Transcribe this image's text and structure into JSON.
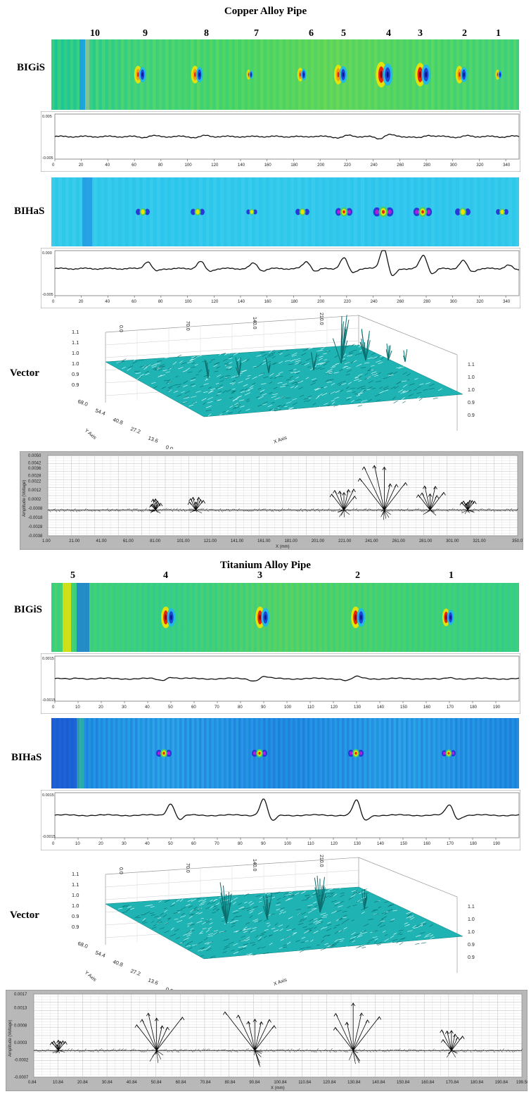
{
  "sections": [
    {
      "title": "Copper Alloy Pipe",
      "defect_numbers": [
        "10",
        "9",
        "8",
        "7",
        "6",
        "5",
        "4",
        "3",
        "2",
        "1"
      ],
      "row_labels": {
        "bigis": "BIGiS",
        "bihas": "BIHaS",
        "vector": "Vector"
      },
      "signal1": {
        "ytop": "0.005",
        "ybot": "-0.005",
        "xticks": [
          "0",
          "20",
          "40",
          "60",
          "80",
          "100",
          "120",
          "140",
          "160",
          "180",
          "200",
          "220",
          "240",
          "260",
          "280",
          "300",
          "320",
          "340"
        ]
      },
      "signal2": {
        "ytop": "0.000",
        "ybot": "-0.005",
        "xticks": [
          "0",
          "20",
          "40",
          "60",
          "80",
          "100",
          "120",
          "140",
          "160",
          "180",
          "200",
          "220",
          "240",
          "260",
          "280",
          "300",
          "320",
          "340"
        ]
      },
      "surface": {
        "zticks": [
          "1.1",
          "1.1",
          "1.0",
          "1.0",
          "0.9",
          "0.9"
        ],
        "yticks": [
          "68.0",
          "54.4",
          "40.8",
          "27.2",
          "13.6",
          "0.0"
        ],
        "y_axis_label": "Y Axis",
        "x_axis_label": "X Axis",
        "top_ticks": [
          "0.0",
          "70.0",
          "140.0",
          "210.0"
        ],
        "right_ticks": [
          "1.1",
          "1.0",
          "1.0",
          "0.9",
          "0.9"
        ]
      },
      "vector_plot": {
        "ylabel": "Amplitude (Voltage)",
        "xlabel": "X (mm)",
        "yticks": [
          "0.0050",
          "0.0042",
          "0.0036",
          "0.0028",
          "0.0022",
          "0.0012",
          "0.0002",
          "-0.0008",
          "-0.0018",
          "-0.0028",
          "-0.0038"
        ],
        "xticks": [
          "1.00",
          "21.00",
          "41.00",
          "61.00",
          "81.00",
          "101.00",
          "121.00",
          "141.00",
          "161.00",
          "181.00",
          "201.00",
          "221.00",
          "241.00",
          "261.00",
          "281.00",
          "301.00",
          "321.00",
          "350.07"
        ]
      }
    },
    {
      "title": "Titanium Alloy Pipe",
      "defect_numbers": [
        "5",
        "4",
        "3",
        "2",
        "1"
      ],
      "row_labels": {
        "bigis": "BIGiS",
        "bihas": "BIHaS",
        "vector": "Vector"
      },
      "signal1": {
        "ytop": "0.0015",
        "ybot": "-0.0015",
        "xticks": [
          "0",
          "10",
          "20",
          "30",
          "40",
          "50",
          "60",
          "70",
          "80",
          "90",
          "100",
          "110",
          "120",
          "130",
          "140",
          "150",
          "160",
          "170",
          "180",
          "190"
        ]
      },
      "signal2": {
        "ytop": "0.0015",
        "ybot": "-0.0015",
        "xticks": [
          "0",
          "10",
          "20",
          "30",
          "40",
          "50",
          "60",
          "70",
          "80",
          "90",
          "100",
          "110",
          "120",
          "130",
          "140",
          "150",
          "160",
          "170",
          "180",
          "190"
        ]
      },
      "surface": {
        "zticks": [
          "1.1",
          "1.1",
          "1.0",
          "1.0",
          "0.9",
          "0.9"
        ],
        "yticks": [
          "68.0",
          "54.4",
          "40.8",
          "27.2",
          "13.6",
          "0.0"
        ],
        "y_axis_label": "Y Axis",
        "x_axis_label": "X Axis",
        "top_ticks": [
          "0.0",
          "70.0",
          "140.0",
          "210.0"
        ],
        "right_ticks": [
          "1.1",
          "1.0",
          "1.0",
          "0.9",
          "0.9"
        ]
      },
      "vector_plot": {
        "ylabel": "Amplitude (Voltage)",
        "xlabel": "X (mm)",
        "yticks": [
          "0.0017",
          "0.0013",
          "0.0008",
          "0.0003",
          "-0.0002",
          "-0.0007"
        ],
        "xticks": [
          "0.84",
          "10.84",
          "20.84",
          "30.84",
          "40.84",
          "50.84",
          "60.84",
          "70.84",
          "80.84",
          "90.84",
          "100.84",
          "110.84",
          "120.84",
          "130.84",
          "140.84",
          "150.84",
          "160.84",
          "170.84",
          "180.84",
          "190.84",
          "199.50"
        ]
      }
    }
  ],
  "chart_data": [
    {
      "type": "heatmap",
      "section": "Copper Alloy Pipe",
      "row": "BIGiS",
      "defects_x": [
        345,
        312,
        278,
        248,
        218,
        190,
        150,
        110,
        70,
        25
      ],
      "palette": [
        "#1a2fd0",
        "#19a9ef",
        "#3bd07e",
        "#8ce53b",
        "#f0d400",
        "#f33a12",
        "#8a0010"
      ]
    },
    {
      "type": "line",
      "section": "Copper Alloy Pipe",
      "row": "BIGiS signal",
      "xlim": [
        0,
        350
      ],
      "ylim": [
        -0.005,
        0.005
      ],
      "peaks": [
        {
          "x": 70,
          "a": 0.0012
        },
        {
          "x": 110,
          "a": 0.0015
        },
        {
          "x": 150,
          "a": 0.0004
        },
        {
          "x": 190,
          "a": 0.0006
        },
        {
          "x": 218,
          "a": 0.0019
        },
        {
          "x": 248,
          "a": 0.0037
        },
        {
          "x": 278,
          "a": 0.0027
        },
        {
          "x": 308,
          "a": 0.0012
        },
        {
          "x": 342,
          "a": 0.0005
        }
      ]
    },
    {
      "type": "heatmap",
      "section": "Copper Alloy Pipe",
      "row": "BIHaS",
      "defects_x": [
        345,
        310,
        278,
        248,
        218,
        190,
        150,
        110,
        70,
        25
      ]
    },
    {
      "type": "line",
      "section": "Copper Alloy Pipe",
      "row": "BIHaS signal",
      "xlim": [
        0,
        350
      ],
      "ylim": [
        -0.005,
        0.0
      ],
      "peaks": [
        {
          "x": 70,
          "a": 0.0008
        },
        {
          "x": 110,
          "a": 0.0008
        },
        {
          "x": 150,
          "a": 0.0006
        },
        {
          "x": 190,
          "a": 0.0008
        },
        {
          "x": 218,
          "a": 0.0012
        },
        {
          "x": 248,
          "a": 0.0024
        },
        {
          "x": 278,
          "a": 0.0015
        },
        {
          "x": 308,
          "a": 0.0009
        },
        {
          "x": 342,
          "a": 0.0004
        }
      ]
    },
    {
      "type": "line",
      "section": "Copper Alloy Pipe",
      "row": "Vector plot",
      "xlim": [
        1,
        350.07
      ],
      "ylim": [
        -0.0038,
        0.005
      ],
      "arrow_clusters": [
        {
          "x": 81,
          "a": 0.0012
        },
        {
          "x": 111,
          "a": 0.0014
        },
        {
          "x": 221,
          "a": 0.0024
        },
        {
          "x": 251,
          "a": 0.0048
        },
        {
          "x": 285,
          "a": 0.0028
        },
        {
          "x": 313,
          "a": 0.0012
        }
      ]
    },
    {
      "type": "heatmap",
      "section": "Titanium Alloy Pipe",
      "row": "BIGiS",
      "defects_x": [
        8,
        48,
        88,
        128,
        168
      ]
    },
    {
      "type": "line",
      "section": "Titanium Alloy Pipe",
      "row": "BIGiS signal",
      "xlim": [
        0,
        200
      ],
      "ylim": [
        -0.0015,
        0.0015
      ],
      "peaks": [
        {
          "x": 48,
          "a": 0.0009
        },
        {
          "x": 88,
          "a": 0.0011
        },
        {
          "x": 128,
          "a": 0.001
        },
        {
          "x": 168,
          "a": 0.0005
        },
        {
          "x": 8,
          "a": 0.0004
        }
      ]
    },
    {
      "type": "heatmap",
      "section": "Titanium Alloy Pipe",
      "row": "BIHaS",
      "defects_x": [
        3,
        50,
        90,
        130,
        170
      ]
    },
    {
      "type": "line",
      "section": "Titanium Alloy Pipe",
      "row": "BIHaS signal",
      "xlim": [
        0,
        200
      ],
      "ylim": [
        -0.0015,
        0.0015
      ],
      "peaks": [
        {
          "x": 50,
          "a": 0.0008
        },
        {
          "x": 90,
          "a": 0.0011
        },
        {
          "x": 130,
          "a": 0.001
        },
        {
          "x": 170,
          "a": 0.0007
        }
      ]
    },
    {
      "type": "line",
      "section": "Titanium Alloy Pipe",
      "row": "Vector plot",
      "xlim": [
        0.84,
        199.5
      ],
      "ylim": [
        -0.0007,
        0.0017
      ],
      "arrow_clusters": [
        {
          "x": 10.84,
          "a": 0.0003
        },
        {
          "x": 50.84,
          "a": 0.0012
        },
        {
          "x": 90.84,
          "a": 0.0014
        },
        {
          "x": 130.84,
          "a": 0.0013
        },
        {
          "x": 170.84,
          "a": 0.0006
        }
      ]
    }
  ]
}
